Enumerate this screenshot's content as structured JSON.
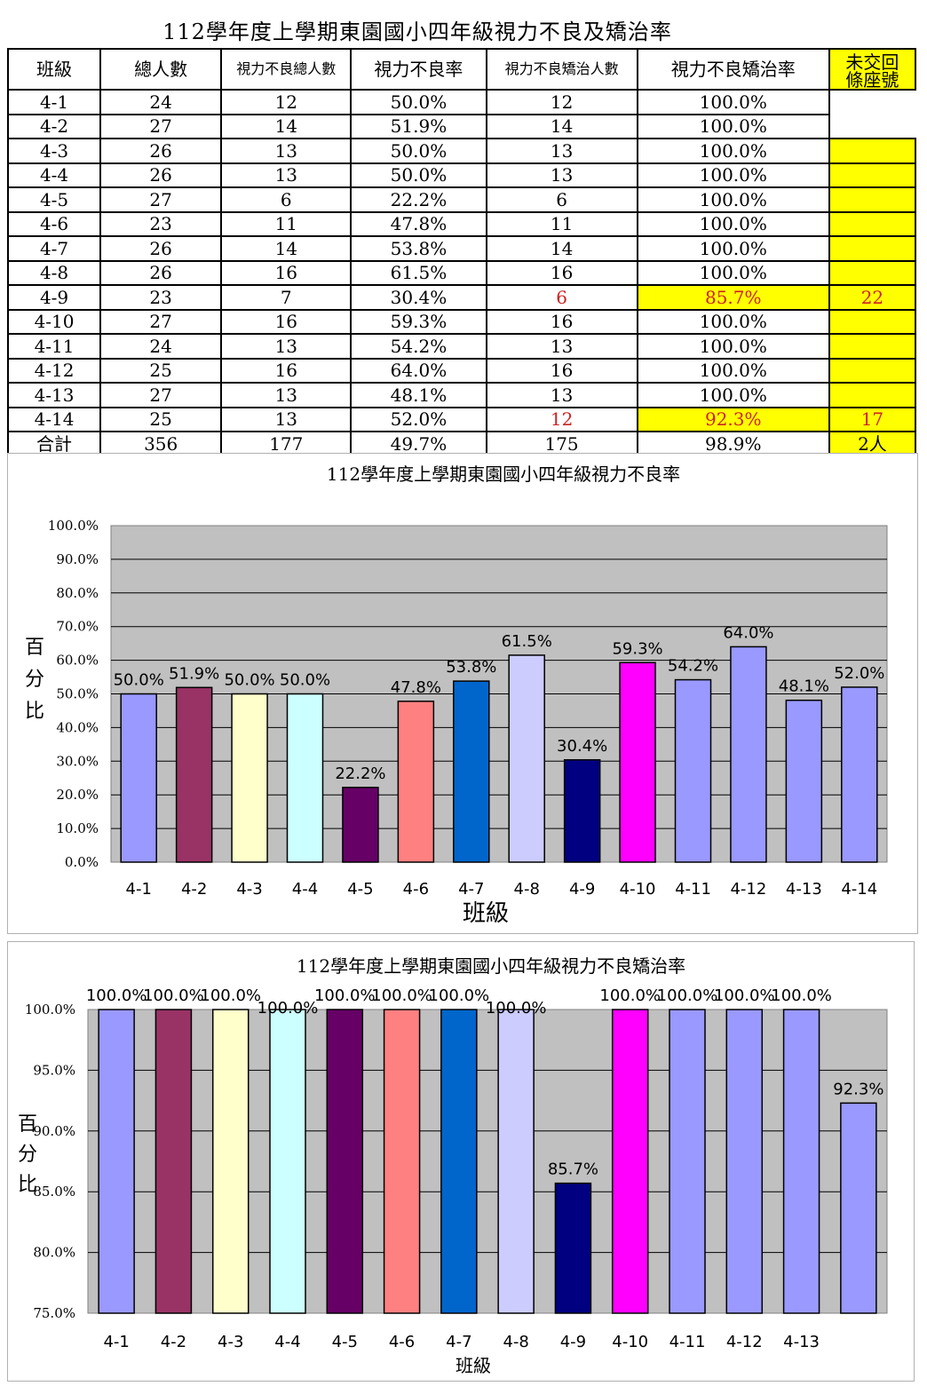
{
  "table": {
    "title": "112學年度上學期東園國小四年級視力不良及矯治率",
    "headers": [
      "班級",
      "總人數",
      "視力不良總人數",
      "視力不良率",
      "視力不良矯治人數",
      "視力不良矯治率",
      "未交回條座號"
    ],
    "notice_header_lines": [
      "未交回",
      "條座號"
    ],
    "rows": [
      {
        "cls": "4-1",
        "total": "24",
        "poor": "12",
        "poor_rate": "50.0%",
        "treated": "12",
        "treat_rate": "100.0%",
        "missing": ""
      },
      {
        "cls": "4-2",
        "total": "27",
        "poor": "14",
        "poor_rate": "51.9%",
        "treated": "14",
        "treat_rate": "100.0%",
        "missing": ""
      },
      {
        "cls": "4-3",
        "total": "26",
        "poor": "13",
        "poor_rate": "50.0%",
        "treated": "13",
        "treat_rate": "100.0%",
        "missing": ""
      },
      {
        "cls": "4-4",
        "total": "26",
        "poor": "13",
        "poor_rate": "50.0%",
        "treated": "13",
        "treat_rate": "100.0%",
        "missing": ""
      },
      {
        "cls": "4-5",
        "total": "27",
        "poor": "6",
        "poor_rate": "22.2%",
        "treated": "6",
        "treat_rate": "100.0%",
        "missing": ""
      },
      {
        "cls": "4-6",
        "total": "23",
        "poor": "11",
        "poor_rate": "47.8%",
        "treated": "11",
        "treat_rate": "100.0%",
        "missing": ""
      },
      {
        "cls": "4-7",
        "total": "26",
        "poor": "14",
        "poor_rate": "53.8%",
        "treated": "14",
        "treat_rate": "100.0%",
        "missing": ""
      },
      {
        "cls": "4-8",
        "total": "26",
        "poor": "16",
        "poor_rate": "61.5%",
        "treated": "16",
        "treat_rate": "100.0%",
        "missing": ""
      },
      {
        "cls": "4-9",
        "total": "23",
        "poor": "7",
        "poor_rate": "30.4%",
        "treated": "6",
        "treat_rate": "85.7%",
        "missing": "22"
      },
      {
        "cls": "4-10",
        "total": "27",
        "poor": "16",
        "poor_rate": "59.3%",
        "treated": "16",
        "treat_rate": "100.0%",
        "missing": ""
      },
      {
        "cls": "4-11",
        "total": "24",
        "poor": "13",
        "poor_rate": "54.2%",
        "treated": "13",
        "treat_rate": "100.0%",
        "missing": ""
      },
      {
        "cls": "4-12",
        "total": "25",
        "poor": "16",
        "poor_rate": "64.0%",
        "treated": "16",
        "treat_rate": "100.0%",
        "missing": ""
      },
      {
        "cls": "4-13",
        "total": "27",
        "poor": "13",
        "poor_rate": "48.1%",
        "treated": "13",
        "treat_rate": "100.0%",
        "missing": ""
      },
      {
        "cls": "4-14",
        "total": "25",
        "poor": "13",
        "poor_rate": "52.0%",
        "treated": "12",
        "treat_rate": "92.3%",
        "missing": "17"
      }
    ],
    "total_row": {
      "cls": "合計",
      "total": "356",
      "poor": "177",
      "poor_rate": "49.7%",
      "treated": "175",
      "treat_rate": "98.9%",
      "missing": "2人"
    },
    "highlight_color": "#ffff00",
    "alert_text_color": "#cc2222"
  },
  "chart_data": [
    {
      "type": "bar",
      "title": "112學年度上學期東園國小四年級視力不良率",
      "xlabel": "班級",
      "ylabel": "百分比",
      "ylim": [
        0,
        100
      ],
      "y_ticks": [
        "0.0%",
        "10.0%",
        "20.0%",
        "30.0%",
        "40.0%",
        "50.0%",
        "60.0%",
        "70.0%",
        "80.0%",
        "90.0%",
        "100.0%"
      ],
      "grid": true,
      "categories": [
        "4-1",
        "4-2",
        "4-3",
        "4-4",
        "4-5",
        "4-6",
        "4-7",
        "4-8",
        "4-9",
        "4-10",
        "4-11",
        "4-12",
        "4-13",
        "4-14"
      ],
      "values": [
        50.0,
        51.9,
        50.0,
        50.0,
        22.2,
        47.8,
        53.8,
        61.5,
        30.4,
        59.3,
        54.2,
        64.0,
        48.1,
        52.0
      ],
      "data_labels": [
        "50.0%",
        "51.9%",
        "50.0%",
        "50.0%",
        "22.2%",
        "47.8%",
        "53.8%",
        "61.5%",
        "30.4%",
        "59.3%",
        "54.2%",
        "64.0%",
        "48.1%",
        "52.0%"
      ],
      "colors": [
        "#9999ff",
        "#993366",
        "#ffffcc",
        "#ccffff",
        "#660066",
        "#ff8080",
        "#0066cc",
        "#ccccff",
        "#000080",
        "#ff00ff",
        "#9999ff",
        "#9999ff",
        "#9999ff",
        "#9999ff"
      ],
      "plot_background": "#c0c0c0"
    },
    {
      "type": "bar",
      "title": "112學年度上學期東園國小四年級視力不良矯治率",
      "xlabel": "班級",
      "ylabel": "百分比",
      "ylim": [
        75,
        100
      ],
      "y_ticks": [
        "75.0%",
        "80.0%",
        "85.0%",
        "90.0%",
        "95.0%",
        "100.0%"
      ],
      "grid": true,
      "categories": [
        "4-1",
        "4-2",
        "4-3",
        "4-4",
        "4-5",
        "4-6",
        "4-7",
        "4-8",
        "4-9",
        "4-10",
        "4-11",
        "4-12",
        "4-13",
        ""
      ],
      "values": [
        100.0,
        100.0,
        100.0,
        100.0,
        100.0,
        100.0,
        100.0,
        100.0,
        85.7,
        100.0,
        100.0,
        100.0,
        100.0,
        92.3
      ],
      "data_labels": [
        "100.0%",
        "100.0%",
        "100.0%",
        "100.0%",
        "100.0%",
        "100.0%",
        "100.0%",
        "100.0%",
        "85.7%",
        "100.0%",
        "100.0%",
        "100.0%",
        "100.0%",
        "92.3%"
      ],
      "colors": [
        "#9999ff",
        "#993366",
        "#ffffcc",
        "#ccffff",
        "#660066",
        "#ff8080",
        "#0066cc",
        "#ccccff",
        "#000080",
        "#ff00ff",
        "#9999ff",
        "#9999ff",
        "#9999ff",
        "#9999ff"
      ],
      "plot_background": "#c0c0c0"
    }
  ]
}
